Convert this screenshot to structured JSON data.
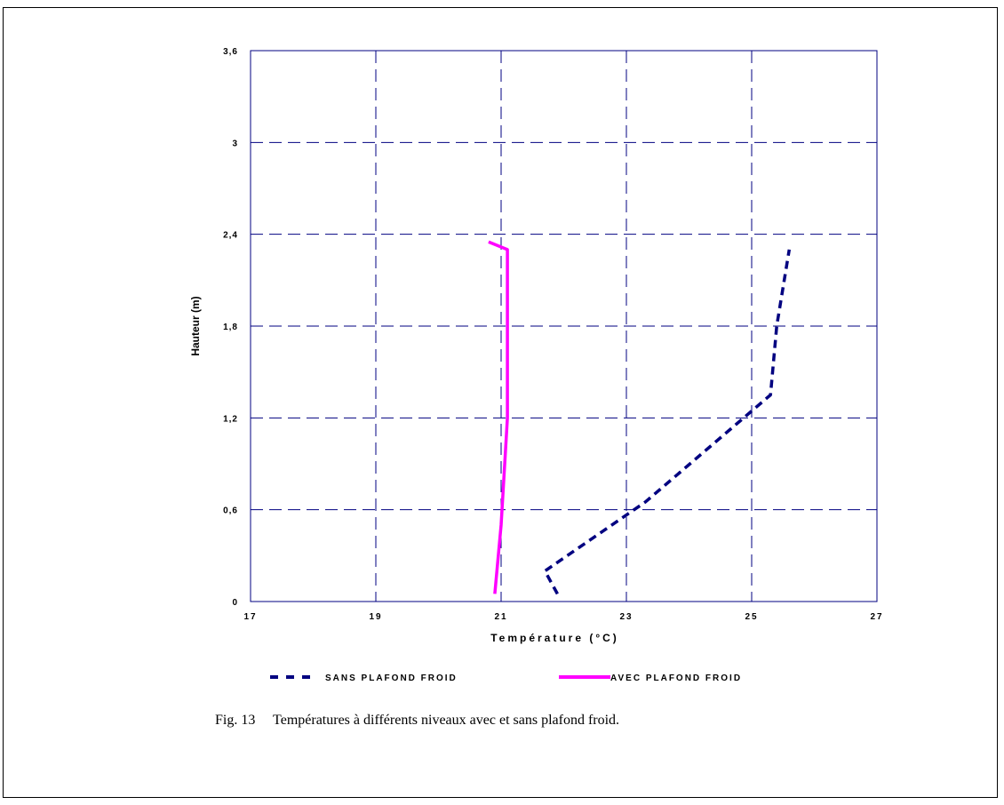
{
  "chart_data": {
    "type": "line",
    "xlabel": "Température (°C)",
    "ylabel": "Hauteur (m)",
    "xlim": [
      17,
      27
    ],
    "ylim": [
      0,
      3.6
    ],
    "x_ticks": [
      17,
      19,
      21,
      23,
      25,
      27
    ],
    "y_ticks": [
      0,
      0.6,
      1.2,
      1.8,
      2.4,
      3,
      3.6
    ],
    "x_tick_labels": [
      "17",
      "19",
      "21",
      "23",
      "25",
      "27"
    ],
    "y_tick_labels": [
      "0",
      "0,6",
      "1,2",
      "1,8",
      "2,4",
      "3",
      "3,6"
    ],
    "grid": true,
    "legend_position": "bottom",
    "series": [
      {
        "name": "SANS PLAFOND FROID",
        "color": "#000080",
        "style": "dashed",
        "points": [
          [
            21.9,
            0.05
          ],
          [
            21.7,
            0.2
          ],
          [
            23.3,
            0.65
          ],
          [
            25.3,
            1.35
          ],
          [
            25.4,
            1.8
          ],
          [
            25.6,
            2.3
          ]
        ]
      },
      {
        "name": "AVEC PLAFOND FROID",
        "color": "#ff00ff",
        "style": "solid",
        "points": [
          [
            20.9,
            0.05
          ],
          [
            21.0,
            0.5
          ],
          [
            21.1,
            1.2
          ],
          [
            21.1,
            2.3
          ],
          [
            20.8,
            2.35
          ]
        ]
      }
    ]
  },
  "caption": "Fig. 13     Températures à différents niveaux avec et sans plafond froid."
}
